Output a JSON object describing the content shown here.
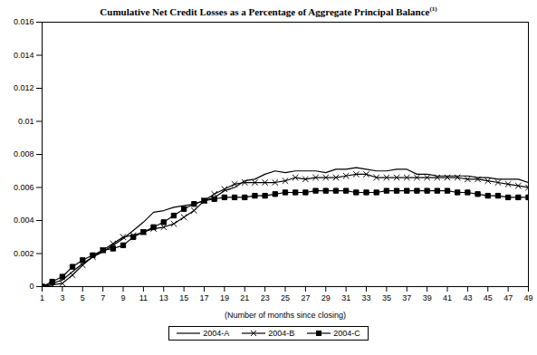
{
  "chart_data": {
    "type": "line",
    "title": "Cumulative Net Credit Losses as a Percentage of Aggregate Principal Balance",
    "title_footnote": "(1)",
    "x_label": "(Number of months since closing)",
    "x": [
      1,
      2,
      3,
      4,
      5,
      6,
      7,
      8,
      9,
      10,
      11,
      12,
      13,
      14,
      15,
      16,
      17,
      18,
      19,
      20,
      21,
      22,
      23,
      24,
      25,
      26,
      27,
      28,
      29,
      30,
      31,
      32,
      33,
      34,
      35,
      36,
      37,
      38,
      39,
      40,
      41,
      42,
      43,
      44,
      45,
      46,
      47,
      48,
      49
    ],
    "series": [
      {
        "name": "2004-A",
        "color": "#000000",
        "marker": "none",
        "values": [
          0,
          0.0002,
          0.0004,
          0.0009,
          0.0014,
          0.0018,
          0.0021,
          0.0025,
          0.0029,
          0.0034,
          0.0039,
          0.0045,
          0.0046,
          0.0048,
          0.0049,
          0.005,
          0.0052,
          0.0054,
          0.0058,
          0.006,
          0.0064,
          0.0065,
          0.0068,
          0.007,
          0.0069,
          0.007,
          0.007,
          0.007,
          0.0069,
          0.0071,
          0.0071,
          0.0072,
          0.0071,
          0.007,
          0.007,
          0.0071,
          0.0071,
          0.0068,
          0.0068,
          0.0067,
          0.0067,
          0.0067,
          0.0067,
          0.0066,
          0.0066,
          0.0065,
          0.0065,
          0.0065,
          0.0063
        ]
      },
      {
        "name": "2004-B",
        "color": "#000000",
        "marker": "x",
        "values": [
          0,
          0.0001,
          0.0002,
          0.0007,
          0.0013,
          0.0018,
          0.0022,
          0.0026,
          0.003,
          0.0031,
          0.0033,
          0.0035,
          0.0036,
          0.0038,
          0.0042,
          0.0046,
          0.0052,
          0.0056,
          0.0059,
          0.0062,
          0.0063,
          0.0063,
          0.0063,
          0.0063,
          0.0064,
          0.0066,
          0.0065,
          0.0066,
          0.0066,
          0.0066,
          0.0067,
          0.0068,
          0.0068,
          0.0066,
          0.0066,
          0.0066,
          0.0066,
          0.0066,
          0.0066,
          0.0066,
          0.0066,
          0.0066,
          0.0065,
          0.0065,
          0.0064,
          0.0063,
          0.0062,
          0.0061,
          0.006
        ]
      },
      {
        "name": "2004-C",
        "color": "#000000",
        "marker": "square",
        "values": [
          0,
          0.0003,
          0.0006,
          0.0012,
          0.0016,
          0.0019,
          0.0022,
          0.0023,
          0.0025,
          0.003,
          0.0033,
          0.0036,
          0.0039,
          0.0043,
          0.0047,
          0.005,
          0.0052,
          0.0053,
          0.0054,
          0.0054,
          0.0054,
          0.0055,
          0.0055,
          0.0056,
          0.0057,
          0.0057,
          0.0057,
          0.0058,
          0.0058,
          0.0058,
          0.0058,
          0.0057,
          0.0057,
          0.0057,
          0.0058,
          0.0058,
          0.0058,
          0.0058,
          0.0058,
          0.0058,
          0.0058,
          0.0057,
          0.0057,
          0.0056,
          0.0055,
          0.0055,
          0.0054,
          0.0054,
          0.0054
        ]
      }
    ],
    "xlim": [
      1,
      49
    ],
    "xticks": [
      1,
      3,
      5,
      7,
      9,
      11,
      13,
      15,
      17,
      19,
      21,
      23,
      25,
      27,
      29,
      31,
      33,
      35,
      37,
      39,
      41,
      43,
      45,
      47,
      49
    ],
    "ylim": [
      0,
      0.016
    ],
    "yticks": [
      0,
      0.002,
      0.004,
      0.006,
      0.008,
      0.01,
      0.012,
      0.014,
      0.016
    ],
    "grid": false,
    "legend": "bottom"
  }
}
